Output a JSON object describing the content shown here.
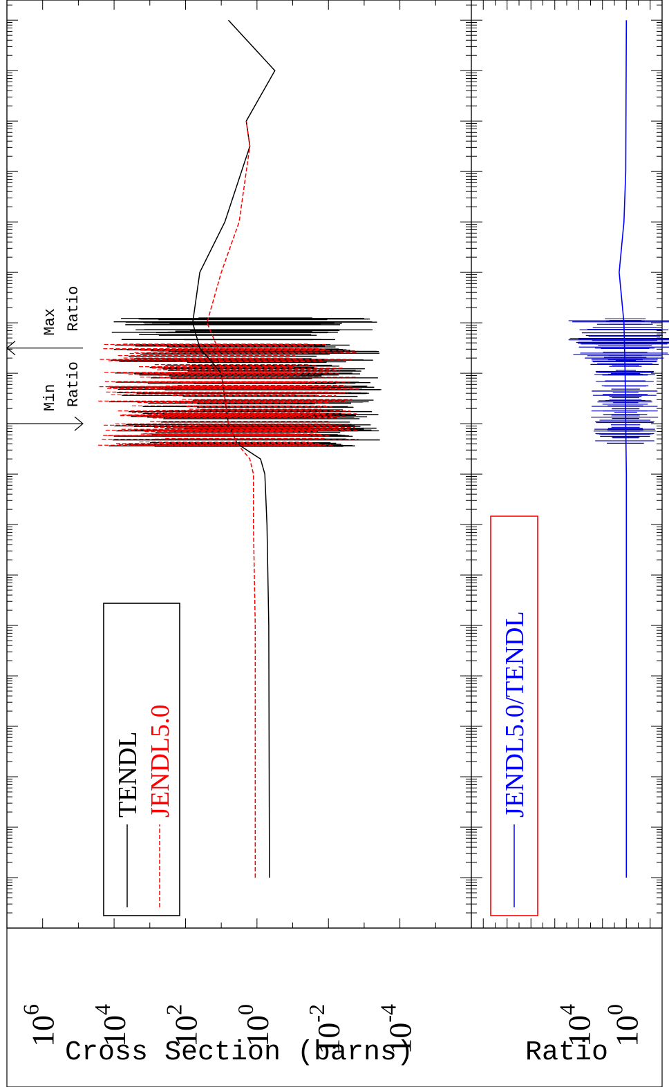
{
  "chart_data": {
    "type": "line",
    "title": "",
    "xlabel": "",
    "panels": [
      {
        "id": "cross-section",
        "ylabel": "Cross Section (barns)",
        "yscale": "log",
        "ylim_exp": [
          -6,
          7
        ],
        "yticks": [
          {
            "base": "10",
            "exp": "6"
          },
          {
            "base": "10",
            "exp": "4"
          },
          {
            "base": "10",
            "exp": "2"
          },
          {
            "base": "10",
            "exp": "0"
          },
          {
            "base": "10",
            "exp": "-2"
          },
          {
            "base": "10",
            "exp": "-4"
          }
        ],
        "legend": {
          "placement": "bottom-left",
          "entries": [
            {
              "label": "TENDL",
              "color": "#000000",
              "dash": "solid"
            },
            {
              "label": "JENDL5.0",
              "color": "#ff0000",
              "dash": "dashed"
            }
          ]
        },
        "series": [
          {
            "name": "TENDL",
            "color": "#000000",
            "points": [
              [
                -5,
                -0.35
              ],
              [
                0,
                -0.33
              ],
              [
                2,
                -0.28
              ],
              [
                3,
                -0.22
              ],
              [
                3.3,
                -0.1
              ],
              [
                3.6,
                0.55
              ],
              [
                4,
                0.8
              ],
              [
                5,
                1.0
              ],
              [
                5.5,
                1.6
              ],
              [
                6,
                1.8
              ],
              [
                7,
                1.6
              ],
              [
                8,
                0.9
              ],
              [
                9.5,
                0.2
              ],
              [
                10,
                0.3
              ],
              [
                11,
                -0.5
              ],
              [
                12,
                0.8
              ]
            ]
          },
          {
            "name": "JENDL5.0",
            "color": "#ff0000",
            "points": [
              [
                -5,
                0.05
              ],
              [
                0,
                0.05
              ],
              [
                2,
                0.1
              ],
              [
                3,
                0.1
              ],
              [
                3.3,
                0.2
              ],
              [
                3.6,
                0.55
              ],
              [
                4,
                0.8
              ],
              [
                5,
                1.0
              ],
              [
                5.5,
                1.1
              ],
              [
                6,
                1.4
              ],
              [
                7,
                1.0
              ],
              [
                8,
                0.5
              ],
              [
                9.5,
                0.2
              ],
              [
                10,
                0.3
              ]
            ]
          }
        ]
      },
      {
        "id": "ratio",
        "ylabel": "Ratio",
        "yscale": "log",
        "ylim_exp": [
          -3,
          13
        ],
        "yticks": [
          {
            "base": "10",
            "exp": "4"
          },
          {
            "base": "10",
            "exp": "0"
          }
        ],
        "legend": {
          "placement": "bottom-left",
          "entries": [
            {
              "label": "JENDL5.0/TENDL",
              "color": "#0000ff",
              "dash": "solid"
            }
          ]
        },
        "series": [
          {
            "name": "JENDL5.0/TENDL",
            "color": "#0000ff",
            "points": [
              [
                -5,
                0
              ],
              [
                3,
                0
              ],
              [
                5,
                0.1
              ],
              [
                6,
                0.2
              ],
              [
                7,
                0.6
              ],
              [
                8,
                0.2
              ],
              [
                9,
                0.05
              ],
              [
                12,
                0
              ]
            ]
          }
        ]
      }
    ],
    "annotations": [
      {
        "label": "Min\nRatio",
        "x": 4.0
      },
      {
        "label": "Max\nRatio",
        "x": 5.5
      }
    ],
    "resonance_region": {
      "x_start": 3.55,
      "x_end": 6.1
    }
  }
}
